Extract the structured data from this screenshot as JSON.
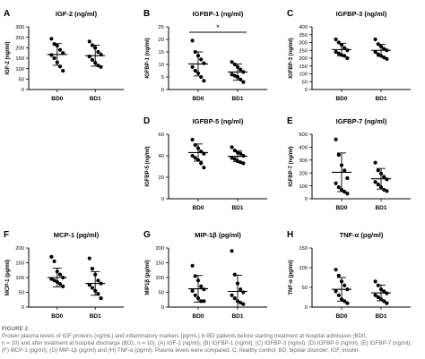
{
  "figure": {
    "label": "FIGURE 2",
    "caption": "Protein plasma levels of IGF proteins (ng/mL) and inflammatory markers (pg/mL) in BD patients before starting treatment at hospital admission (BD0,\nn = 10) and after treatment at hospital discharge (BD1, n = 10). (A) IGF-2 (ng/ml); (B) IGFBP-1 (ng/ml); (C) IGFBP-3 (ng/ml); (D) IGFBP-5 (ng/ml); (E) IGFBP-7 (ng/ml);\n(F) MCP-1 (pg/ml); (G) MIP-1β (pg/ml) and (H) TNF-α (pg/ml). Plasma levels were compared. C, healthy control; BD, bipolar disorder; IGF, insulin-"
  },
  "colors": {
    "ink": "#000000",
    "caption": "#6b6b6b"
  },
  "chart_data": [
    {
      "panel": "A",
      "type": "scatter",
      "title": "IGF-2 (ng/ml)",
      "ylabel": "IGF-2 (ng/ml)",
      "xlabel": "",
      "categories": [
        "BD0",
        "BD1"
      ],
      "ylim": [
        0,
        300
      ],
      "yticks": [
        0,
        50,
        100,
        150,
        200,
        250,
        300
      ],
      "series": [
        {
          "values": [
            243,
            218,
            210,
            190,
            175,
            165,
            150,
            130,
            110,
            90
          ],
          "mean": 168,
          "sd": 52
        },
        {
          "values": [
            230,
            212,
            200,
            180,
            168,
            158,
            142,
            128,
            115,
            108
          ],
          "mean": 162,
          "sd": 50
        }
      ]
    },
    {
      "panel": "B",
      "type": "scatter",
      "title": "IGFBP-1 (ng/ml)",
      "ylabel": "IGFBP-1 (ng/ml)",
      "xlabel": "",
      "categories": [
        "BD0",
        "BD1"
      ],
      "ylim": [
        0,
        25
      ],
      "yticks": [
        0,
        5,
        10,
        15,
        20,
        25
      ],
      "series": [
        {
          "values": [
            19.5,
            15,
            13.5,
            12,
            10.5,
            9,
            7.5,
            6.5,
            5,
            3.5
          ],
          "mean": 10.2,
          "sd": 4.8
        },
        {
          "values": [
            11,
            10,
            9,
            8,
            7,
            6,
            5.5,
            5,
            4,
            3
          ],
          "mean": 7,
          "sd": 3.2
        }
      ],
      "annotation": "*"
    },
    {
      "panel": "C",
      "type": "scatter",
      "title": "IGFBP-3 (ng/ml)",
      "ylabel": "IGFBP-3 (ng/ml)",
      "xlabel": "",
      "categories": [
        "BD0",
        "BD1"
      ],
      "ylim": [
        0,
        400
      ],
      "yticks": [
        0,
        50,
        100,
        150,
        200,
        250,
        300,
        350,
        400
      ],
      "series": [
        {
          "values": [
            320,
            300,
            285,
            265,
            250,
            240,
            230,
            220,
            215,
            200
          ],
          "mean": 255,
          "sd": 40
        },
        {
          "values": [
            320,
            290,
            275,
            260,
            250,
            240,
            225,
            215,
            205,
            195
          ],
          "mean": 250,
          "sd": 38
        }
      ]
    },
    {
      "panel": "D",
      "type": "scatter",
      "title": "IGFBP-5 (ng/ml)",
      "ylabel": "IGFBP-5 (ng/ml)",
      "xlabel": "",
      "categories": [
        "BD0",
        "BD1"
      ],
      "ylim": [
        0,
        60
      ],
      "yticks": [
        0,
        20,
        40,
        60
      ],
      "series": [
        {
          "values": [
            55,
            50,
            47,
            44,
            42,
            40,
            38,
            36,
            33,
            29
          ],
          "mean": 43,
          "sd": 8
        },
        {
          "values": [
            48,
            45,
            43,
            42,
            40,
            38,
            37,
            35,
            34,
            33
          ],
          "mean": 39.5,
          "sd": 5
        }
      ]
    },
    {
      "panel": "E",
      "type": "scatter",
      "title": "IGFBP-7 (ng/ml)",
      "ylabel": "IGFBP-7 (ng/ml)",
      "xlabel": "",
      "categories": [
        "BD0",
        "BD1"
      ],
      "ylim": [
        0,
        500
      ],
      "yticks": [
        0,
        100,
        200,
        300,
        400,
        500
      ],
      "series": [
        {
          "values": [
            460,
            340,
            260,
            220,
            160,
            120,
            90,
            70,
            55,
            40
          ],
          "mean": 205,
          "sd": 150
        },
        {
          "values": [
            280,
            220,
            195,
            170,
            150,
            130,
            110,
            90,
            70,
            60
          ],
          "mean": 155,
          "sd": 80
        }
      ]
    },
    {
      "panel": "F",
      "type": "scatter",
      "title": "MCP-1 (pg/ml)",
      "ylabel": "MCP-1 (pg/ml)",
      "xlabel": "",
      "categories": [
        "BD0",
        "BD1"
      ],
      "ylim": [
        0,
        200
      ],
      "yticks": [
        0,
        50,
        100,
        150,
        200
      ],
      "series": [
        {
          "values": [
            170,
            155,
            120,
            110,
            100,
            95,
            90,
            85,
            78,
            70
          ],
          "mean": 100,
          "sd": 32
        },
        {
          "values": [
            165,
            130,
            110,
            90,
            80,
            75,
            65,
            55,
            45,
            30
          ],
          "mean": 80,
          "sd": 40
        }
      ]
    },
    {
      "panel": "G",
      "type": "scatter",
      "title": "MIP-1β (pg/ml)",
      "ylabel": "MIP1β (pg/ml)",
      "xlabel": "",
      "categories": [
        "BD0",
        "BD1"
      ],
      "ylim": [
        0,
        200
      ],
      "yticks": [
        0,
        50,
        100,
        150,
        200
      ],
      "series": [
        {
          "values": [
            140,
            105,
            90,
            70,
            60,
            55,
            40,
            30,
            20,
            20
          ],
          "mean": 62,
          "sd": 45
        },
        {
          "values": [
            190,
            110,
            80,
            60,
            50,
            40,
            30,
            20,
            15,
            10
          ],
          "mean": 53,
          "sd": 55
        }
      ]
    },
    {
      "panel": "H",
      "type": "scatter",
      "title": "TNF-α (pg/ml)",
      "ylabel": "TNF-α (pg/ml)",
      "xlabel": "",
      "categories": [
        "BD0",
        "BD1"
      ],
      "ylim": [
        0,
        150
      ],
      "yticks": [
        0,
        50,
        100,
        150
      ],
      "series": [
        {
          "values": [
            95,
            80,
            65,
            55,
            45,
            40,
            30,
            20,
            15,
            10
          ],
          "mean": 45,
          "sd": 30
        },
        {
          "values": [
            65,
            55,
            45,
            40,
            35,
            30,
            25,
            20,
            15,
            10
          ],
          "mean": 36,
          "sd": 20
        }
      ]
    }
  ]
}
